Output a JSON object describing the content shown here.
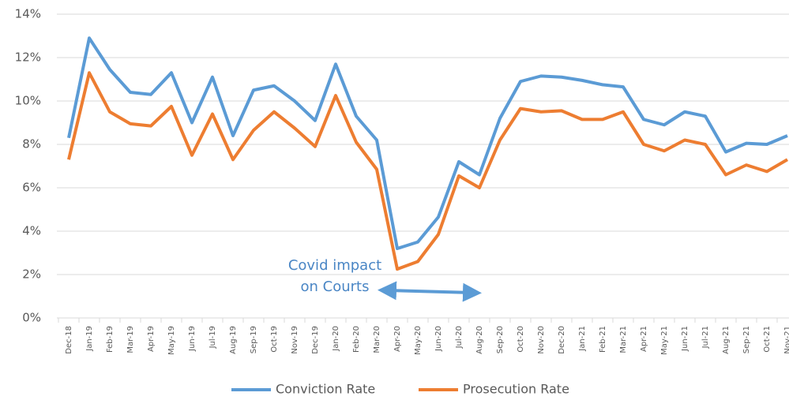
{
  "chart_data": {
    "type": "line",
    "categories": [
      "Dec-18",
      "Jan-19",
      "Feb-19",
      "Mar-19",
      "Apr-19",
      "May-19",
      "Jun-19",
      "Jul-19",
      "Aug-19",
      "Sep-19",
      "Oct-19",
      "Nov-19",
      "Dec-19",
      "Jan-20",
      "Feb-20",
      "Mar-20",
      "Apr-20",
      "May-20",
      "Jun-20",
      "Jul-20",
      "Aug-20",
      "Sep-20",
      "Oct-20",
      "Nov-20",
      "Dec-20",
      "Jan-21",
      "Feb-21",
      "Mar-21",
      "Apr-21",
      "May-21",
      "Jun-21",
      "Jul-21",
      "Aug-21",
      "Sep-21",
      "Oct-21",
      "Nov-21"
    ],
    "series": [
      {
        "name": "Conviction Rate",
        "color": "#5b9bd5",
        "values": [
          8.3,
          12.9,
          11.45,
          10.4,
          10.3,
          11.3,
          9.0,
          11.1,
          8.4,
          10.5,
          10.7,
          10.0,
          9.1,
          11.7,
          9.3,
          8.2,
          3.2,
          3.5,
          4.65,
          7.2,
          6.6,
          9.2,
          10.9,
          11.15,
          11.1,
          10.95,
          10.75,
          10.65,
          9.15,
          8.9,
          9.5,
          9.3,
          7.65,
          8.05,
          8.0,
          8.4
        ]
      },
      {
        "name": "Prosecution Rate",
        "color": "#ed7d31",
        "values": [
          7.3,
          11.3,
          9.5,
          8.95,
          8.85,
          9.75,
          7.5,
          9.4,
          7.3,
          8.65,
          9.5,
          8.75,
          7.9,
          10.25,
          8.1,
          6.85,
          2.25,
          2.6,
          3.85,
          6.55,
          6.0,
          8.2,
          9.65,
          9.5,
          9.55,
          9.15,
          9.15,
          9.5,
          8.0,
          7.7,
          8.2,
          8.0,
          6.6,
          7.05,
          6.75,
          7.3
        ]
      }
    ],
    "ylim": [
      0,
      14
    ],
    "yticks": [
      {
        "value": 0,
        "label": "0%"
      },
      {
        "value": 2,
        "label": "2%"
      },
      {
        "value": 4,
        "label": "4%"
      },
      {
        "value": 6,
        "label": "6%"
      },
      {
        "value": 8,
        "label": "8%"
      },
      {
        "value": 10,
        "label": "10%"
      },
      {
        "value": 12,
        "label": "12%"
      },
      {
        "value": 14,
        "label": "14%"
      }
    ],
    "grid": true,
    "legend": "bottom",
    "annotation": {
      "lines": [
        "Covid impact",
        "on Courts"
      ],
      "color": "#4a86c5"
    }
  }
}
